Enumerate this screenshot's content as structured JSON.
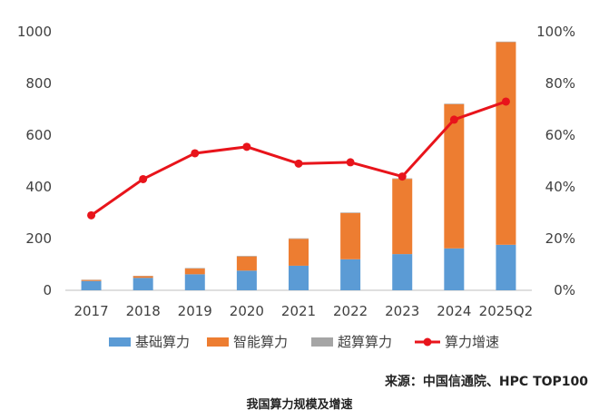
{
  "chart_data": {
    "type": "bar",
    "title": "我国算力规模及增速",
    "source": "来源：中国信通院、HPC TOP100",
    "categories": [
      "2017",
      "2018",
      "2019",
      "2020",
      "2021",
      "2022",
      "2023",
      "2024",
      "2025Q2"
    ],
    "series": [
      {
        "name": "基础算力",
        "kind": "bar",
        "axis": "left",
        "color": "#5b9bd5",
        "values": [
          36,
          48,
          62,
          76,
          95,
          120,
          140,
          162,
          176
        ]
      },
      {
        "name": "智能算力",
        "kind": "bar",
        "axis": "left",
        "color": "#ed7d31",
        "values": [
          4,
          7,
          22,
          55,
          104,
          179,
          291,
          558,
          784
        ]
      },
      {
        "name": "超算算力",
        "kind": "bar",
        "axis": "left",
        "color": "#a5a5a5",
        "values": [
          1,
          1,
          2,
          2,
          2,
          2,
          2,
          2,
          2
        ]
      },
      {
        "name": "算力增速",
        "kind": "line",
        "axis": "right",
        "color": "#e8141b",
        "values": [
          29,
          43,
          53,
          55.5,
          49,
          49.5,
          44,
          66,
          73
        ]
      }
    ],
    "y_left": {
      "min": 0,
      "max": 1000,
      "ticks": [
        "0",
        "200",
        "400",
        "600",
        "800",
        "1000"
      ]
    },
    "y_right": {
      "min": 0,
      "max": 100,
      "ticks": [
        "0%",
        "20%",
        "40%",
        "60%",
        "80%",
        "100%"
      ]
    },
    "grid": false,
    "legend_position": "bottom"
  }
}
